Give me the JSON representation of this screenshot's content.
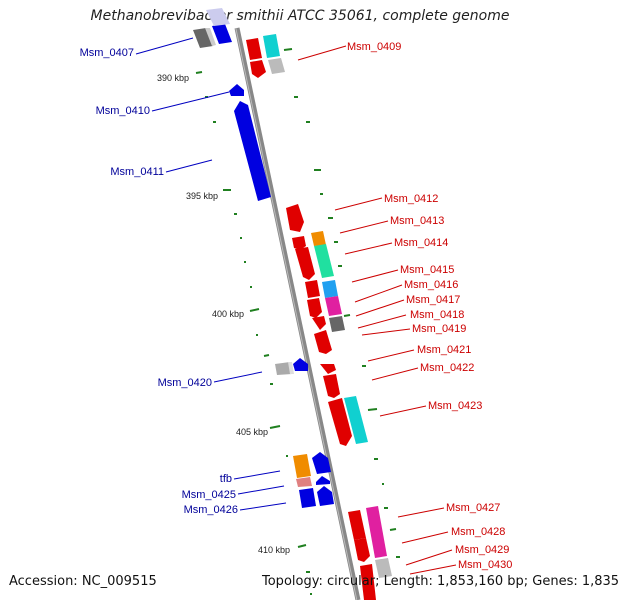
{
  "header": {
    "title": "Methanobrevibacter smithii ATCC 35061, complete genome"
  },
  "footer": {
    "accession": "Accession: NC_009515",
    "summary": "Topology: circular; Length: 1,853,160 bp; Genes: 1,835"
  },
  "ticks": [
    {
      "label": "390 kbp",
      "kbp": 390
    },
    {
      "label": "395 kbp",
      "kbp": 395
    },
    {
      "label": "400 kbp",
      "kbp": 400
    },
    {
      "label": "405 kbp",
      "kbp": 405
    },
    {
      "label": "410 kbp",
      "kbp": 410
    }
  ],
  "colors": {
    "forward": "#e00000",
    "reverse": "#0000e0",
    "forward_label": "#cc0000",
    "reverse_label": "#000099",
    "backbone": "#888888",
    "gc_dash": "#208020"
  },
  "gene_labels": {
    "reverse": [
      {
        "name": "Msm_0407"
      },
      {
        "name": "Msm_0410"
      },
      {
        "name": "Msm_0411"
      },
      {
        "name": "Msm_0420"
      },
      {
        "name": "tfb"
      },
      {
        "name": "Msm_0425"
      },
      {
        "name": "Msm_0426"
      }
    ],
    "forward": [
      {
        "name": "Msm_0409"
      },
      {
        "name": "Msm_0412"
      },
      {
        "name": "Msm_0413"
      },
      {
        "name": "Msm_0414"
      },
      {
        "name": "Msm_0415"
      },
      {
        "name": "Msm_0416"
      },
      {
        "name": "Msm_0417"
      },
      {
        "name": "Msm_0418"
      },
      {
        "name": "Msm_0419"
      },
      {
        "name": "Msm_0421"
      },
      {
        "name": "Msm_0422"
      },
      {
        "name": "Msm_0423"
      },
      {
        "name": "Msm_0427"
      },
      {
        "name": "Msm_0428"
      },
      {
        "name": "Msm_0429"
      },
      {
        "name": "Msm_0430"
      }
    ]
  }
}
